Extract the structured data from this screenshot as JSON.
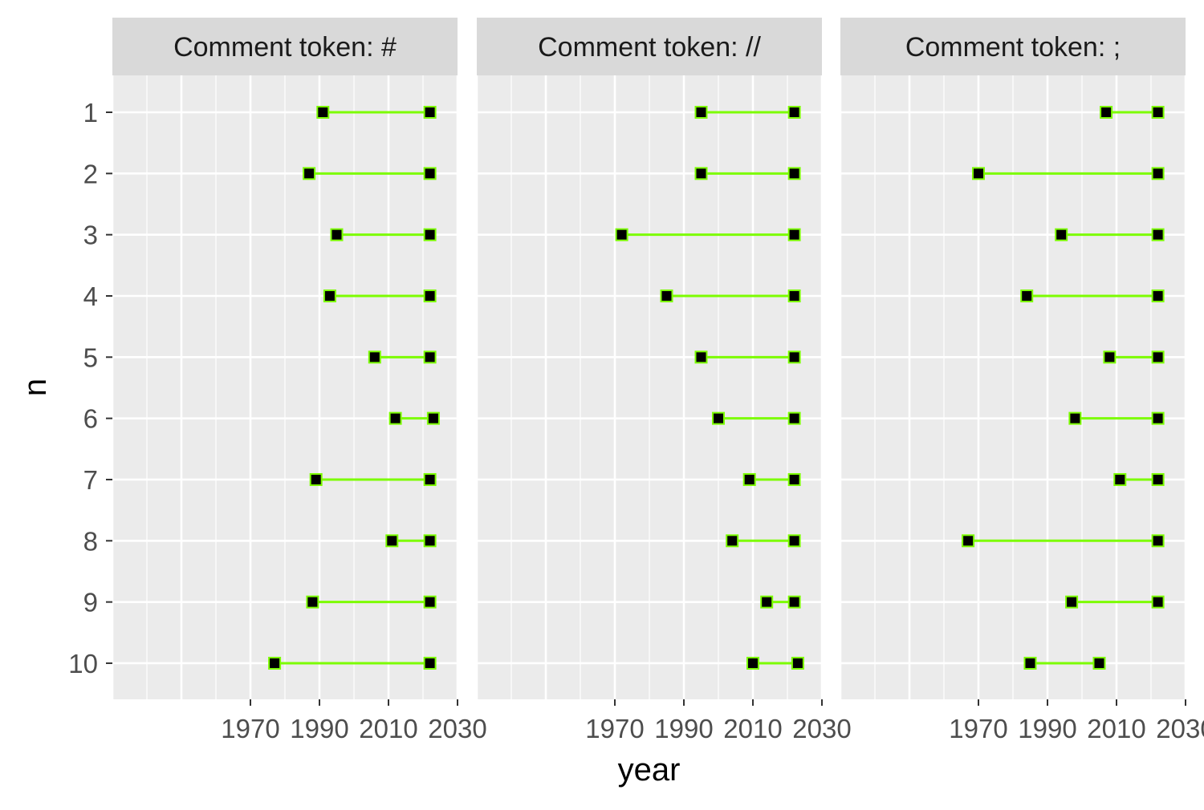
{
  "chart_data": {
    "type": "dumbbell",
    "xlabel": "year",
    "ylabel": "n",
    "xlim": [
      1930,
      2030
    ],
    "x_ticks": [
      1970,
      1990,
      2010,
      2030
    ],
    "y_categories": [
      "1",
      "2",
      "3",
      "4",
      "5",
      "6",
      "7",
      "8",
      "9",
      "10"
    ],
    "grid": true,
    "colors": {
      "panel_background": "#ebebeb",
      "strip_background": "#d9d9d9",
      "gridline": "#ffffff",
      "segment": "#7cfc00",
      "point_fill": "#000000",
      "point_border": "#7cfc00"
    },
    "facets": [
      {
        "label": "Comment token: #",
        "rows": [
          {
            "n": "1",
            "start": 1991,
            "end": 2022
          },
          {
            "n": "2",
            "start": 1987,
            "end": 2022
          },
          {
            "n": "3",
            "start": 1995,
            "end": 2022
          },
          {
            "n": "4",
            "start": 1993,
            "end": 2022
          },
          {
            "n": "5",
            "start": 2006,
            "end": 2022
          },
          {
            "n": "6",
            "start": 2012,
            "end": 2023
          },
          {
            "n": "7",
            "start": 1989,
            "end": 2022
          },
          {
            "n": "8",
            "start": 2011,
            "end": 2022
          },
          {
            "n": "9",
            "start": 1988,
            "end": 2022
          },
          {
            "n": "10",
            "start": 1977,
            "end": 2022
          }
        ]
      },
      {
        "label": "Comment token: //",
        "rows": [
          {
            "n": "1",
            "start": 1995,
            "end": 2022
          },
          {
            "n": "2",
            "start": 1995,
            "end": 2022
          },
          {
            "n": "3",
            "start": 1972,
            "end": 2022
          },
          {
            "n": "4",
            "start": 1985,
            "end": 2022
          },
          {
            "n": "5",
            "start": 1995,
            "end": 2022
          },
          {
            "n": "6",
            "start": 2000,
            "end": 2022
          },
          {
            "n": "7",
            "start": 2009,
            "end": 2022
          },
          {
            "n": "8",
            "start": 2004,
            "end": 2022
          },
          {
            "n": "9",
            "start": 2014,
            "end": 2022
          },
          {
            "n": "10",
            "start": 2010,
            "end": 2023
          }
        ]
      },
      {
        "label": "Comment token: ;",
        "rows": [
          {
            "n": "1",
            "start": 2007,
            "end": 2022
          },
          {
            "n": "2",
            "start": 1970,
            "end": 2022
          },
          {
            "n": "3",
            "start": 1994,
            "end": 2022
          },
          {
            "n": "4",
            "start": 1984,
            "end": 2022
          },
          {
            "n": "5",
            "start": 2008,
            "end": 2022
          },
          {
            "n": "6",
            "start": 1998,
            "end": 2022
          },
          {
            "n": "7",
            "start": 2011,
            "end": 2022
          },
          {
            "n": "8",
            "start": 1967,
            "end": 2022
          },
          {
            "n": "9",
            "start": 1997,
            "end": 2022
          },
          {
            "n": "10",
            "start": 1985,
            "end": 2005
          }
        ]
      }
    ]
  }
}
